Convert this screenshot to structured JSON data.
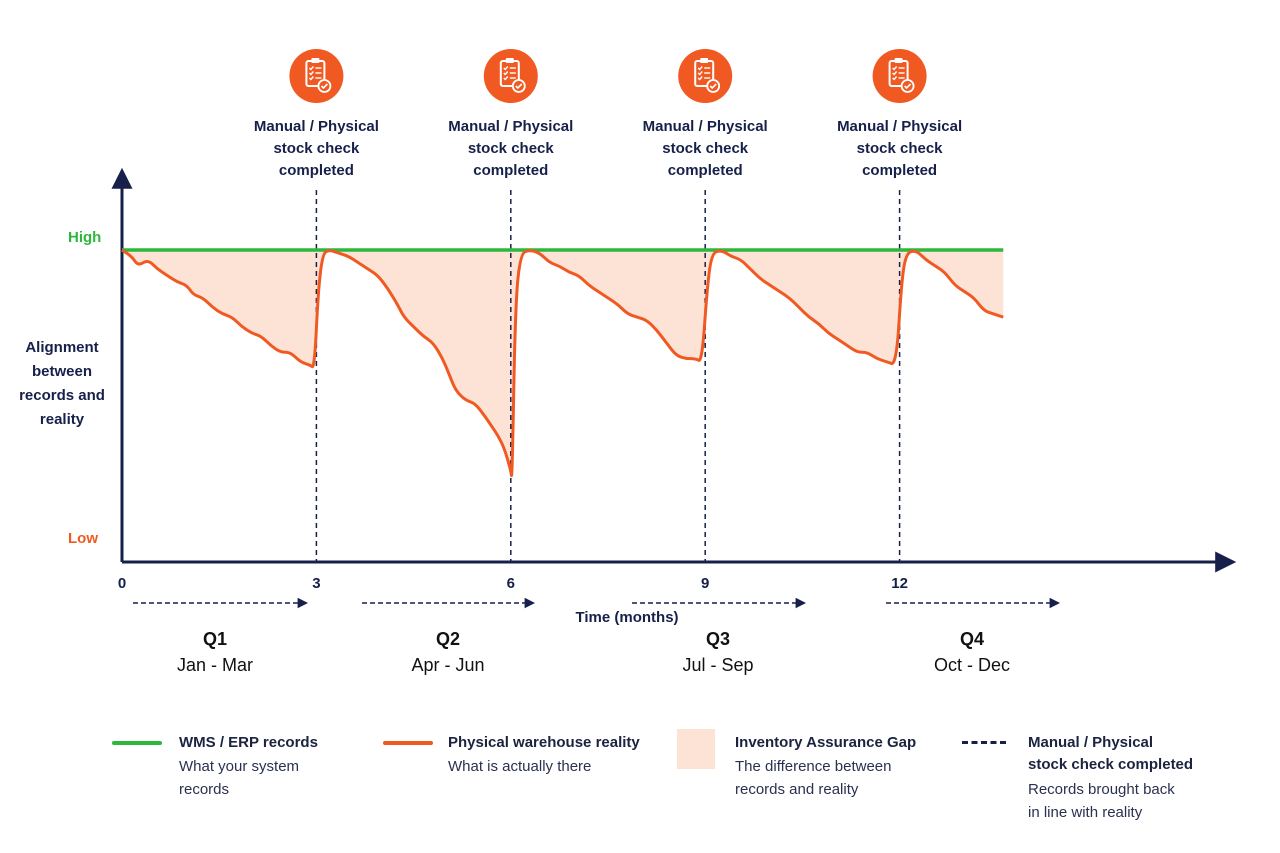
{
  "chart_data": {
    "type": "line",
    "xlabel": "Time (months)",
    "ylabel": [
      "Alignment",
      "between",
      "records and",
      "reality"
    ],
    "y_high_label": "High",
    "y_low_label": "Low",
    "x_ticks": [
      "0",
      "3",
      "6",
      "9",
      "12"
    ],
    "xlim": [
      0,
      13.6
    ],
    "ylim": [
      0,
      1
    ],
    "grid": false,
    "series": [
      {
        "name": "WMS / ERP records",
        "color": "#2db83d",
        "points": [
          [
            0,
            0.97
          ],
          [
            13.6,
            0.97
          ]
        ]
      },
      {
        "name": "Physical warehouse reality",
        "color": "#f05a22",
        "points": [
          [
            0,
            0.97
          ],
          [
            0.15,
            0.95
          ],
          [
            0.25,
            0.92
          ],
          [
            0.4,
            0.94
          ],
          [
            0.55,
            0.91
          ],
          [
            0.7,
            0.89
          ],
          [
            0.85,
            0.87
          ],
          [
            1.0,
            0.86
          ],
          [
            1.1,
            0.83
          ],
          [
            1.25,
            0.82
          ],
          [
            1.4,
            0.79
          ],
          [
            1.55,
            0.77
          ],
          [
            1.7,
            0.76
          ],
          [
            1.85,
            0.73
          ],
          [
            2.0,
            0.71
          ],
          [
            2.15,
            0.7
          ],
          [
            2.3,
            0.67
          ],
          [
            2.45,
            0.65
          ],
          [
            2.6,
            0.65
          ],
          [
            2.75,
            0.62
          ],
          [
            2.9,
            0.61
          ],
          [
            2.97,
            0.6
          ],
          [
            3.03,
            0.85
          ],
          [
            3.1,
            0.96
          ],
          [
            3.2,
            0.97
          ],
          [
            3.35,
            0.96
          ],
          [
            3.5,
            0.95
          ],
          [
            3.65,
            0.93
          ],
          [
            3.8,
            0.91
          ],
          [
            3.95,
            0.89
          ],
          [
            4.1,
            0.85
          ],
          [
            4.25,
            0.8
          ],
          [
            4.35,
            0.76
          ],
          [
            4.5,
            0.73
          ],
          [
            4.65,
            0.7
          ],
          [
            4.8,
            0.68
          ],
          [
            4.95,
            0.63
          ],
          [
            5.05,
            0.58
          ],
          [
            5.15,
            0.53
          ],
          [
            5.3,
            0.5
          ],
          [
            5.45,
            0.49
          ],
          [
            5.6,
            0.45
          ],
          [
            5.7,
            0.42
          ],
          [
            5.8,
            0.39
          ],
          [
            5.9,
            0.35
          ],
          [
            6.0,
            0.28
          ],
          [
            6.02,
            0.25
          ],
          [
            6.07,
            0.8
          ],
          [
            6.15,
            0.96
          ],
          [
            6.3,
            0.97
          ],
          [
            6.45,
            0.96
          ],
          [
            6.6,
            0.93
          ],
          [
            6.75,
            0.92
          ],
          [
            6.9,
            0.9
          ],
          [
            7.05,
            0.89
          ],
          [
            7.2,
            0.86
          ],
          [
            7.35,
            0.84
          ],
          [
            7.5,
            0.82
          ],
          [
            7.65,
            0.8
          ],
          [
            7.8,
            0.77
          ],
          [
            7.95,
            0.76
          ],
          [
            8.1,
            0.75
          ],
          [
            8.25,
            0.72
          ],
          [
            8.4,
            0.68
          ],
          [
            8.55,
            0.64
          ],
          [
            8.7,
            0.63
          ],
          [
            8.85,
            0.63
          ],
          [
            8.95,
            0.62
          ],
          [
            9.03,
            0.85
          ],
          [
            9.1,
            0.96
          ],
          [
            9.25,
            0.97
          ],
          [
            9.4,
            0.95
          ],
          [
            9.55,
            0.94
          ],
          [
            9.7,
            0.91
          ],
          [
            9.85,
            0.88
          ],
          [
            10.0,
            0.86
          ],
          [
            10.15,
            0.84
          ],
          [
            10.3,
            0.82
          ],
          [
            10.45,
            0.79
          ],
          [
            10.6,
            0.76
          ],
          [
            10.75,
            0.74
          ],
          [
            10.9,
            0.71
          ],
          [
            11.05,
            0.69
          ],
          [
            11.2,
            0.67
          ],
          [
            11.35,
            0.65
          ],
          [
            11.5,
            0.65
          ],
          [
            11.65,
            0.63
          ],
          [
            11.8,
            0.62
          ],
          [
            11.95,
            0.61
          ],
          [
            12.03,
            0.87
          ],
          [
            12.1,
            0.96
          ],
          [
            12.25,
            0.97
          ],
          [
            12.4,
            0.94
          ],
          [
            12.55,
            0.92
          ],
          [
            12.7,
            0.9
          ],
          [
            12.85,
            0.86
          ],
          [
            13.0,
            0.84
          ],
          [
            13.15,
            0.82
          ],
          [
            13.3,
            0.78
          ],
          [
            13.45,
            0.77
          ],
          [
            13.6,
            0.76
          ]
        ]
      }
    ],
    "gap": {
      "name": "Inventory Assurance Gap",
      "color": "#fde3d5"
    },
    "stock_checks": [
      {
        "x": 3,
        "label": [
          "Manual / Physical",
          "stock check",
          "completed"
        ]
      },
      {
        "x": 6,
        "label": [
          "Manual / Physical",
          "stock check",
          "completed"
        ]
      },
      {
        "x": 9,
        "label": [
          "Manual / Physical",
          "stock check",
          "completed"
        ]
      },
      {
        "x": 12,
        "label": [
          "Manual / Physical",
          "stock check",
          "completed"
        ]
      }
    ],
    "quarters": [
      {
        "name": "Q1",
        "months": "Jan - Mar"
      },
      {
        "name": "Q2",
        "months": "Apr - Jun"
      },
      {
        "name": "Q3",
        "months": "Jul - Sep"
      },
      {
        "name": "Q4",
        "months": "Oct - Dec"
      }
    ]
  },
  "colors": {
    "axis": "#16204a",
    "high": "#2db83d",
    "low": "#f05a22",
    "icon_bg": "#f05a22"
  },
  "legend": {
    "records": {
      "title": "WMS / ERP records",
      "desc": [
        "What your system",
        "records"
      ]
    },
    "reality": {
      "title": "Physical warehouse reality",
      "desc": [
        "What is actually there"
      ]
    },
    "gap": {
      "title": "Inventory Assurance Gap",
      "desc": [
        "The difference between",
        "records and reality"
      ]
    },
    "check": {
      "title": [
        "Manual / Physical",
        "stock check completed"
      ],
      "desc": [
        "Records brought back",
        "in line with reality"
      ]
    }
  }
}
